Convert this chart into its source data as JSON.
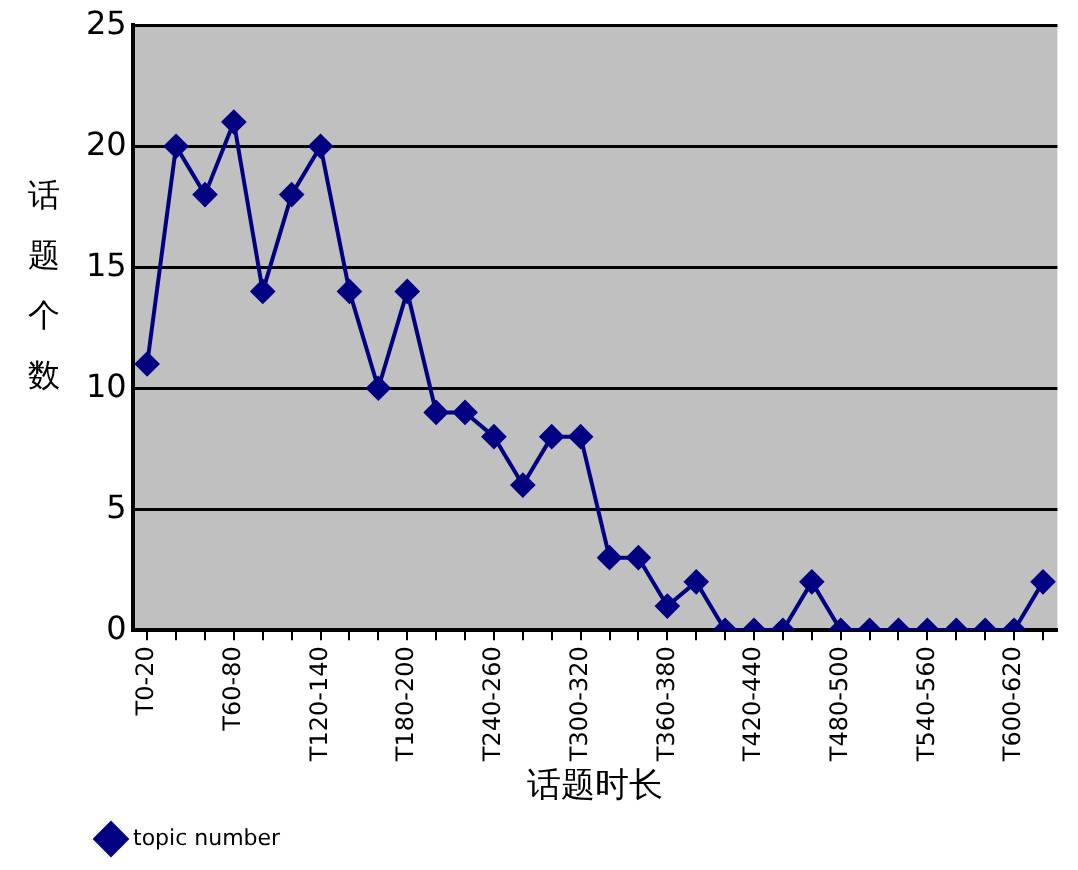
{
  "chart_data": {
    "type": "line",
    "xlabel": "话题时长",
    "ylabel": "话题个数",
    "categories": [
      "T0-20",
      null,
      null,
      "T60-80",
      null,
      null,
      "T120-140",
      null,
      null,
      "T180-200",
      null,
      null,
      "T240-260",
      null,
      null,
      "T300-320",
      null,
      null,
      "T360-380",
      null,
      null,
      "T420-440",
      null,
      null,
      "T480-500",
      null,
      null,
      "T540-560",
      null,
      null,
      "T600-620",
      null
    ],
    "series": [
      {
        "name": "topic number",
        "color": "#000080",
        "values": [
          11,
          20,
          18,
          21,
          14,
          18,
          20,
          14,
          10,
          14,
          9,
          9,
          8,
          6,
          8,
          8,
          3,
          3,
          1,
          2,
          0,
          0,
          0,
          2,
          0,
          0,
          0,
          0,
          0,
          0,
          0,
          2
        ]
      }
    ],
    "ylim": [
      0,
      25
    ],
    "yticks": [
      0,
      5,
      10,
      15,
      20,
      25
    ],
    "grid": "y",
    "legend": "bottom left",
    "marker": "diamond",
    "line_style": "solid"
  }
}
